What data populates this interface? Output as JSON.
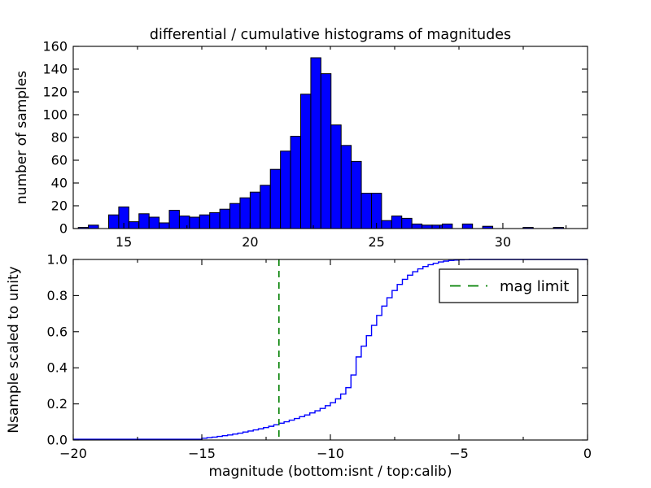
{
  "figure": {
    "background": "#ffffff",
    "title": "differential / cumulative histograms of magnitudes"
  },
  "colors": {
    "bar_fill": "#0000ff",
    "bar_edge": "#000000",
    "curve_line": "#0000ff",
    "mag_limit_line": "#008000",
    "axis": "#000000"
  },
  "chart_data": [
    {
      "type": "bar",
      "subtype": "differential-histogram",
      "title": "differential / cumulative histograms of magnitudes",
      "xlabel": "",
      "ylabel": "number of samples",
      "xlim": [
        13.0,
        33.35
      ],
      "ylim": [
        0,
        160
      ],
      "xticks": [
        15,
        20,
        25,
        30
      ],
      "xtick_labels": [
        "15",
        "20",
        "25",
        "30"
      ],
      "minor_xticks": [
        17.5,
        22.5,
        27.5,
        32.5
      ],
      "yticks": [
        0,
        20,
        40,
        60,
        80,
        100,
        120,
        140,
        160
      ],
      "ytick_labels": [
        "0",
        "20",
        "40",
        "60",
        "80",
        "100",
        "120",
        "140",
        "160"
      ],
      "top_spine_ticks": [
        169,
        248,
        327,
        406,
        485,
        564,
        643
      ],
      "grid": false,
      "legend": null,
      "bins": {
        "start": 13.2,
        "width": 0.4,
        "counts": [
          1,
          3,
          0,
          12,
          19,
          6,
          13,
          10,
          5,
          16,
          11,
          10,
          12,
          14,
          17,
          22,
          27,
          32,
          38,
          52,
          68,
          81,
          118,
          150,
          136,
          91,
          73,
          59,
          31,
          31,
          7,
          11,
          9,
          4,
          3,
          3,
          4,
          0,
          4,
          0,
          2,
          0,
          0,
          0,
          1,
          0,
          0,
          1
        ]
      }
    },
    {
      "type": "line",
      "subtype": "cumulative-step",
      "xlabel": "magnitude (bottom:isnt / top:calib)",
      "ylabel": "Nsample scaled to unity",
      "xlim": [
        -20,
        0
      ],
      "ylim": [
        0.0,
        1.0
      ],
      "xticks": [
        -20,
        -15,
        -10,
        -5,
        0
      ],
      "xtick_labels": [
        "−20",
        "−15",
        "−10",
        "−5",
        "0"
      ],
      "minor_xticks": [
        -17.5,
        -12.5,
        -7.5,
        -2.5
      ],
      "yticks": [
        0.0,
        0.2,
        0.4,
        0.6,
        0.8,
        1.0
      ],
      "ytick_labels": [
        "0.0",
        "0.2",
        "0.4",
        "0.6",
        "0.8",
        "1.0"
      ],
      "grid": false,
      "legend": {
        "label": "mag limit",
        "position": "upper right",
        "line_color": "#008000",
        "line_style": "dashed"
      },
      "mag_limit": {
        "x": -12,
        "label": "mag limit",
        "color": "#008000",
        "style": "dashed"
      },
      "curve_points": [
        [
          -20.0,
          0.004
        ],
        [
          -15.0,
          0.01
        ],
        [
          -14.8,
          0.013
        ],
        [
          -14.6,
          0.016
        ],
        [
          -14.4,
          0.02
        ],
        [
          -14.2,
          0.024
        ],
        [
          -14.0,
          0.028
        ],
        [
          -13.8,
          0.033
        ],
        [
          -13.6,
          0.038
        ],
        [
          -13.4,
          0.044
        ],
        [
          -13.2,
          0.05
        ],
        [
          -13.0,
          0.056
        ],
        [
          -12.8,
          0.062
        ],
        [
          -12.6,
          0.069
        ],
        [
          -12.4,
          0.076
        ],
        [
          -12.2,
          0.084
        ],
        [
          -12.0,
          0.093
        ],
        [
          -11.8,
          0.101
        ],
        [
          -11.6,
          0.11
        ],
        [
          -11.4,
          0.119
        ],
        [
          -11.2,
          0.129
        ],
        [
          -11.0,
          0.139
        ],
        [
          -10.8,
          0.15
        ],
        [
          -10.6,
          0.162
        ],
        [
          -10.4,
          0.175
        ],
        [
          -10.2,
          0.19
        ],
        [
          -10.0,
          0.207
        ],
        [
          -9.8,
          0.228
        ],
        [
          -9.6,
          0.255
        ],
        [
          -9.4,
          0.29
        ],
        [
          -9.2,
          0.36
        ],
        [
          -9.0,
          0.46
        ],
        [
          -8.8,
          0.52
        ],
        [
          -8.6,
          0.578
        ],
        [
          -8.4,
          0.635
        ],
        [
          -8.2,
          0.69
        ],
        [
          -8.0,
          0.742
        ],
        [
          -7.8,
          0.788
        ],
        [
          -7.6,
          0.828
        ],
        [
          -7.4,
          0.862
        ],
        [
          -7.2,
          0.89
        ],
        [
          -7.0,
          0.913
        ],
        [
          -6.8,
          0.932
        ],
        [
          -6.6,
          0.948
        ],
        [
          -6.4,
          0.961
        ],
        [
          -6.2,
          0.971
        ],
        [
          -6.0,
          0.979
        ],
        [
          -5.8,
          0.986
        ],
        [
          -5.6,
          0.991
        ],
        [
          -5.4,
          0.994
        ],
        [
          -5.2,
          0.9965
        ],
        [
          -5.0,
          0.998
        ],
        [
          -4.8,
          0.999
        ],
        [
          -4.6,
          1.0
        ]
      ]
    }
  ]
}
